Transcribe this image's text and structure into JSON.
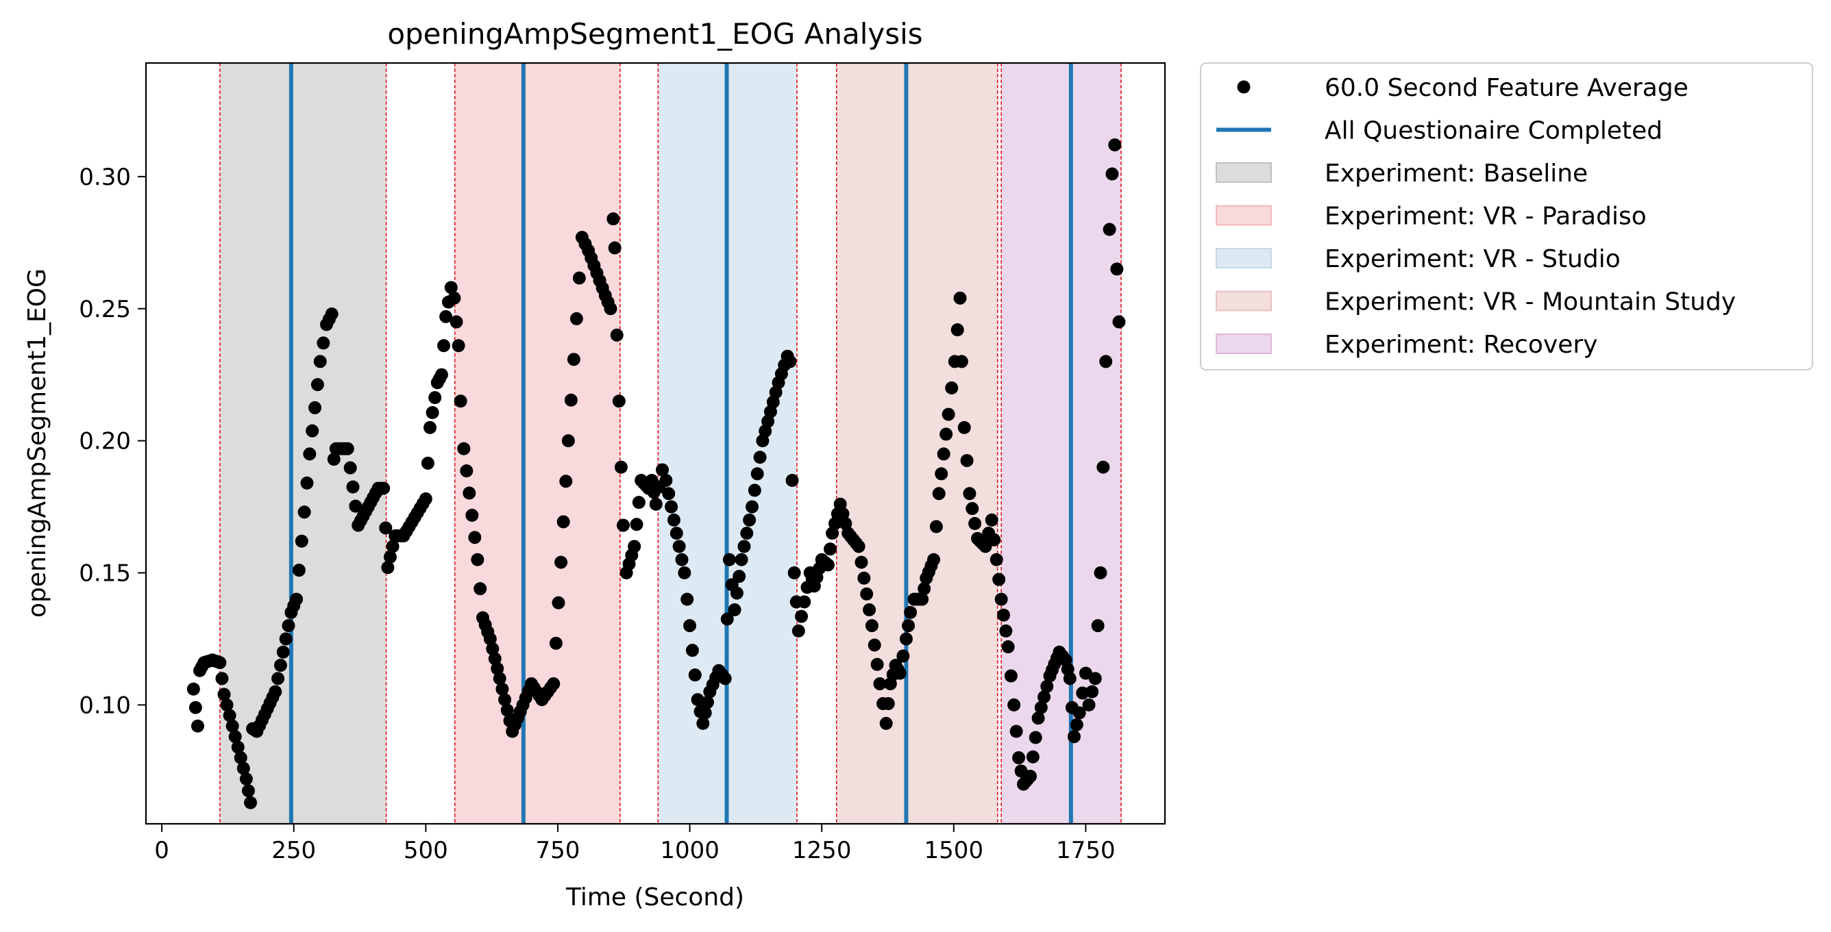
{
  "chart_data": {
    "type": "scatter",
    "title": "openingAmpSegment1_EOG Analysis",
    "xlabel": "Time (Second)",
    "ylabel": "openingAmpSegment1_EOG",
    "xlim": [
      -30,
      1900
    ],
    "ylim": [
      0.055,
      0.343
    ],
    "xticks": [
      0,
      250,
      500,
      750,
      1000,
      1250,
      1500,
      1750
    ],
    "xtick_labels": [
      "0",
      "250",
      "500",
      "750",
      "1000",
      "1250",
      "1500",
      "1750"
    ],
    "yticks": [
      0.1,
      0.15,
      0.2,
      0.25,
      0.3
    ],
    "ytick_labels": [
      "0.10",
      "0.15",
      "0.20",
      "0.25",
      "0.30"
    ],
    "grid": false,
    "legend_position": "outside-top-right",
    "feature_series": {
      "name": "60.0 Second Feature Average",
      "color": "#000000",
      "step": 5,
      "keypoints": [
        [
          60,
          0.106
        ],
        [
          68,
          0.092
        ],
        [
          72,
          0.113
        ],
        [
          80,
          0.116
        ],
        [
          96,
          0.117
        ],
        [
          110,
          0.116
        ],
        [
          118,
          0.104
        ],
        [
          160,
          0.072
        ],
        [
          168,
          0.063
        ],
        [
          172,
          0.091
        ],
        [
          180,
          0.09
        ],
        [
          215,
          0.105
        ],
        [
          245,
          0.135
        ],
        [
          255,
          0.14
        ],
        [
          280,
          0.195
        ],
        [
          300,
          0.23
        ],
        [
          312,
          0.244
        ],
        [
          322,
          0.248
        ],
        [
          326,
          0.193
        ],
        [
          330,
          0.197
        ],
        [
          352,
          0.197
        ],
        [
          372,
          0.168
        ],
        [
          410,
          0.182
        ],
        [
          420,
          0.182
        ],
        [
          428,
          0.152
        ],
        [
          442,
          0.164
        ],
        [
          458,
          0.164
        ],
        [
          500,
          0.178
        ],
        [
          508,
          0.205
        ],
        [
          522,
          0.222
        ],
        [
          530,
          0.225
        ],
        [
          538,
          0.247
        ],
        [
          548,
          0.258
        ],
        [
          554,
          0.254
        ],
        [
          562,
          0.236
        ],
        [
          566,
          0.215
        ],
        [
          572,
          0.197
        ],
        [
          598,
          0.155
        ],
        [
          608,
          0.133
        ],
        [
          622,
          0.125
        ],
        [
          640,
          0.11
        ],
        [
          664,
          0.09
        ],
        [
          684,
          0.1
        ],
        [
          700,
          0.108
        ],
        [
          720,
          0.102
        ],
        [
          742,
          0.108
        ],
        [
          770,
          0.2
        ],
        [
          796,
          0.277
        ],
        [
          808,
          0.272
        ],
        [
          840,
          0.255
        ],
        [
          850,
          0.25
        ],
        [
          855,
          0.284
        ],
        [
          858,
          0.273
        ],
        [
          862,
          0.24
        ],
        [
          866,
          0.215
        ],
        [
          870,
          0.19
        ],
        [
          874,
          0.168
        ],
        [
          880,
          0.15
        ],
        [
          895,
          0.16
        ],
        [
          908,
          0.185
        ],
        [
          922,
          0.182
        ],
        [
          928,
          0.185
        ],
        [
          936,
          0.176
        ],
        [
          948,
          0.189
        ],
        [
          955,
          0.185
        ],
        [
          990,
          0.15
        ],
        [
          1000,
          0.13
        ],
        [
          1015,
          0.102
        ],
        [
          1025,
          0.093
        ],
        [
          1038,
          0.105
        ],
        [
          1055,
          0.113
        ],
        [
          1067,
          0.11
        ],
        [
          1075,
          0.155
        ],
        [
          1085,
          0.136
        ],
        [
          1098,
          0.155
        ],
        [
          1118,
          0.175
        ],
        [
          1138,
          0.2
        ],
        [
          1168,
          0.222
        ],
        [
          1185,
          0.232
        ],
        [
          1190,
          0.23
        ],
        [
          1194,
          0.185
        ],
        [
          1198,
          0.15
        ],
        [
          1206,
          0.128
        ],
        [
          1228,
          0.15
        ],
        [
          1236,
          0.145
        ],
        [
          1250,
          0.155
        ],
        [
          1262,
          0.153
        ],
        [
          1270,
          0.165
        ],
        [
          1285,
          0.176
        ],
        [
          1300,
          0.165
        ],
        [
          1320,
          0.16
        ],
        [
          1345,
          0.13
        ],
        [
          1360,
          0.108
        ],
        [
          1372,
          0.093
        ],
        [
          1380,
          0.108
        ],
        [
          1390,
          0.115
        ],
        [
          1398,
          0.112
        ],
        [
          1410,
          0.125
        ],
        [
          1418,
          0.135
        ],
        [
          1425,
          0.14
        ],
        [
          1440,
          0.14
        ],
        [
          1448,
          0.148
        ],
        [
          1462,
          0.155
        ],
        [
          1472,
          0.18
        ],
        [
          1490,
          0.21
        ],
        [
          1502,
          0.23
        ],
        [
          1512,
          0.254
        ],
        [
          1515,
          0.23
        ],
        [
          1520,
          0.205
        ],
        [
          1530,
          0.18
        ],
        [
          1545,
          0.163
        ],
        [
          1560,
          0.16
        ],
        [
          1572,
          0.17
        ],
        [
          1590,
          0.14
        ],
        [
          1603,
          0.122
        ],
        [
          1614,
          0.1
        ],
        [
          1623,
          0.08
        ],
        [
          1632,
          0.07
        ],
        [
          1645,
          0.073
        ],
        [
          1660,
          0.095
        ],
        [
          1682,
          0.111
        ],
        [
          1700,
          0.12
        ],
        [
          1712,
          0.117
        ],
        [
          1720,
          0.11
        ],
        [
          1728,
          0.088
        ],
        [
          1738,
          0.097
        ],
        [
          1750,
          0.112
        ],
        [
          1756,
          0.1
        ],
        [
          1768,
          0.11
        ],
        [
          1778,
          0.15
        ],
        [
          1788,
          0.23
        ],
        [
          1795,
          0.28
        ],
        [
          1800,
          0.301
        ],
        [
          1805,
          0.312
        ],
        [
          1809,
          0.265
        ],
        [
          1813,
          0.245
        ]
      ]
    },
    "questionnaire_series": {
      "name": "All Questionaire Completed",
      "color": "#1f77b4",
      "x": [
        245,
        685,
        1070,
        1410,
        1722
      ]
    },
    "experiment_phases": [
      {
        "name": "Experiment: Baseline",
        "color": "#bfbfbf",
        "start": 110,
        "end": 425
      },
      {
        "name": "Experiment: VR - Paradiso",
        "color": "#f4b9bd",
        "start": 555,
        "end": 868
      },
      {
        "name": "Experiment: VR - Studio",
        "color": "#c3d9ea",
        "start": 940,
        "end": 1203
      },
      {
        "name": "Experiment: VR - Mountain Study",
        "color": "#e8c2c0",
        "start": 1278,
        "end": 1583
      },
      {
        "name": "Experiment: Recovery",
        "color": "#ddb8dd",
        "start": 1590,
        "end": 1817
      }
    ]
  }
}
